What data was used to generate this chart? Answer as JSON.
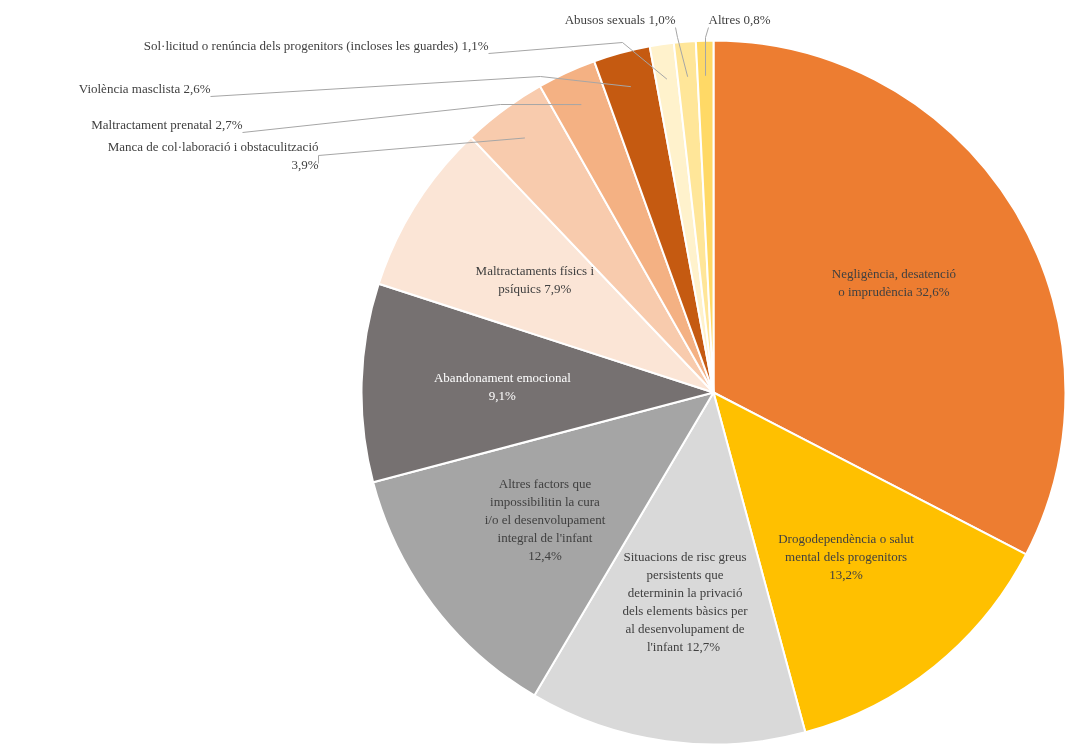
{
  "chart_data": {
    "type": "pie",
    "categories": [
      "Negligència, desatenció o imprudència",
      "Drogodependència o salut mental dels progenitors",
      "Situacions de risc greus persistents que determinin la privació dels elements bàsics per al desenvolupament de l'infant ",
      "Altres factors que impossibilitin la cura i/o el desenvolupament integral de l'infant",
      "Abandonament emocional",
      "Maltractaments físics i psíquics",
      "Manca de col·laboració i obstaculització",
      "Maltractament prenatal",
      "Violència masclista",
      "Sol·licitud o renúncia dels progenitors (incloses les guardes)",
      "Abusos sexuals",
      "Altres"
    ],
    "values": [
      32.6,
      13.2,
      12.7,
      12.4,
      9.1,
      7.9,
      3.9,
      2.7,
      2.6,
      1.1,
      1.0,
      0.8
    ],
    "colors": [
      "#ed7d31",
      "#ffc000",
      "#d9d9d9",
      "#a5a5a5",
      "#767171",
      "#fbe5d6",
      "#f8cbad",
      "#f4b183",
      "#c55a11",
      "#fff2cc",
      "#ffe699",
      "#ffd966"
    ],
    "value_labels": [
      "32,6%",
      "13,2%",
      "12,7%",
      "12,4%",
      "9,1%",
      "7,9%",
      "3,9%",
      "2,7%",
      "2,6%",
      "1,1%",
      "1,0%",
      "0,8%"
    ]
  }
}
